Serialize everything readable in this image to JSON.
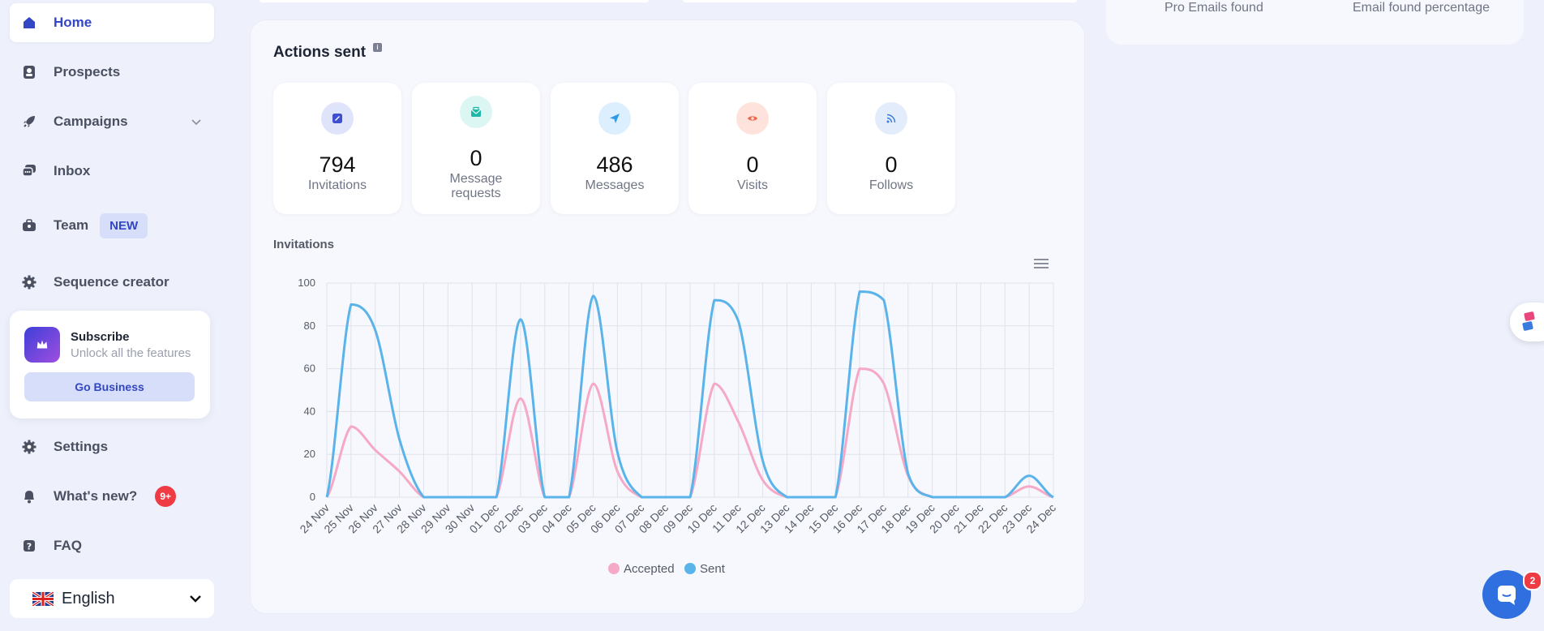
{
  "sidebar": {
    "items": [
      {
        "label": "Home",
        "icon": "home-icon"
      },
      {
        "label": "Prospects",
        "icon": "prospects-icon"
      },
      {
        "label": "Campaigns",
        "icon": "rocket-icon"
      },
      {
        "label": "Inbox",
        "icon": "chat-bubbles-icon"
      },
      {
        "label": "Team",
        "icon": "team-icon",
        "badge": "NEW"
      },
      {
        "label": "Sequence creator",
        "icon": "gear-icon"
      },
      {
        "label": "Settings",
        "icon": "gear-icon"
      },
      {
        "label": "What's new?",
        "icon": "bell-icon",
        "badge": "9+"
      },
      {
        "label": "FAQ",
        "icon": "question-icon"
      }
    ],
    "subscribe": {
      "title": "Subscribe",
      "description": "Unlock all the features",
      "button": "Go Business",
      "icon": "crown-icon"
    },
    "language": {
      "selected": "English",
      "flag": "uk-flag-icon"
    }
  },
  "header_right": {
    "label_1": "Pro Emails found",
    "label_2": "Email found percentage"
  },
  "actions": {
    "title": "Actions sent",
    "info_icon": "i",
    "stats": [
      {
        "value": "794",
        "label": "Invitations",
        "icon": "link-icon",
        "color": "#3e4fcf",
        "bg": "#dfe4fb"
      },
      {
        "value": "0",
        "label": "Message requests",
        "icon": "envelope-icon",
        "color": "#1fb8a8",
        "bg": "#dcf6f3"
      },
      {
        "value": "486",
        "label": "Messages",
        "icon": "send-icon",
        "color": "#2f9be8",
        "bg": "#dcefff"
      },
      {
        "value": "0",
        "label": "Visits",
        "icon": "eye-icon",
        "color": "#f0664a",
        "bg": "#fde3dc"
      },
      {
        "value": "0",
        "label": "Follows",
        "icon": "rss-icon",
        "color": "#3a7bd5",
        "bg": "#e3ecfb"
      }
    ]
  },
  "chart_data": {
    "type": "line",
    "title": "Invitations",
    "categories": [
      "24 Nov",
      "25 Nov",
      "26 Nov",
      "27 Nov",
      "28 Nov",
      "29 Nov",
      "30 Nov",
      "01 Dec",
      "02 Dec",
      "03 Dec",
      "04 Dec",
      "05 Dec",
      "06 Dec",
      "07 Dec",
      "08 Dec",
      "09 Dec",
      "10 Dec",
      "11 Dec",
      "12 Dec",
      "13 Dec",
      "14 Dec",
      "15 Dec",
      "16 Dec",
      "17 Dec",
      "18 Dec",
      "19 Dec",
      "20 Dec",
      "21 Dec",
      "22 Dec",
      "23 Dec",
      "24 Dec"
    ],
    "series": [
      {
        "name": "Accepted",
        "color": "#f5a9c6",
        "values": [
          0,
          33,
          22,
          12,
          0,
          0,
          0,
          0,
          46,
          0,
          0,
          53,
          12,
          0,
          0,
          0,
          53,
          35,
          8,
          0,
          0,
          0,
          60,
          53,
          10,
          0,
          0,
          0,
          0,
          5,
          0
        ]
      },
      {
        "name": "Sent",
        "color": "#5ab4ea",
        "values": [
          0,
          90,
          78,
          27,
          0,
          0,
          0,
          0,
          83,
          0,
          0,
          94,
          21,
          0,
          0,
          0,
          92,
          82,
          17,
          0,
          0,
          0,
          96,
          92,
          11,
          0,
          0,
          0,
          0,
          10,
          0
        ]
      }
    ],
    "ylim": [
      0,
      100
    ],
    "yticks": [
      0,
      20,
      40,
      60,
      80,
      100
    ],
    "grid": true,
    "legend": "bottom-center"
  },
  "chat_widget": {
    "badge": "2"
  }
}
